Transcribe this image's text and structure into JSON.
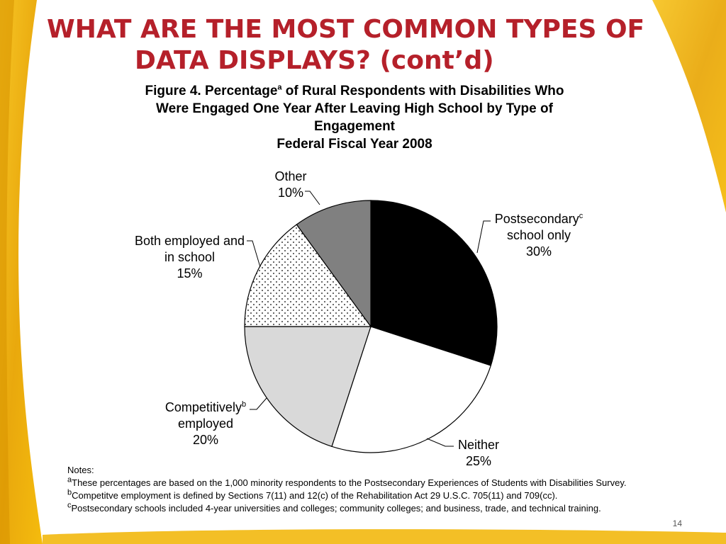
{
  "slide": {
    "title_line1": "WHAT ARE THE MOST COMMON TYPES OF",
    "title_line2": "DATA DISPLAYS? (cont’d)",
    "page_number": "14",
    "accent_color": "#b5202a",
    "frame_color": "#f0b400"
  },
  "figure": {
    "title_part1": "Figure 4. Percentage",
    "title_sup": "a",
    "title_part2": " of Rural Respondents with Disabilities Who",
    "title_line2": "Were Engaged One Year After Leaving High School by Type of",
    "title_line3": "Engagement",
    "title_line4": "Federal Fiscal Year 2008"
  },
  "chart_data": {
    "type": "pie",
    "start_angle_deg": 0,
    "direction": "clockwise",
    "slices": [
      {
        "label_line1": "Postsecondary",
        "label_sup": "c",
        "label_line2": "school only",
        "value": 30,
        "value_label": "30%",
        "fill": "#000000",
        "pattern": "solid"
      },
      {
        "label_line1": "Neither",
        "label_sup": "",
        "label_line2": "",
        "value": 25,
        "value_label": "25%",
        "fill": "#ffffff",
        "pattern": "solid"
      },
      {
        "label_line1": "Competitively",
        "label_sup": "b",
        "label_line2": "employed",
        "value": 20,
        "value_label": "20%",
        "fill": "#d9d9d9",
        "pattern": "solid"
      },
      {
        "label_line1": "Both employed and",
        "label_sup": "",
        "label_line2": "in school",
        "value": 15,
        "value_label": "15%",
        "fill": "#ffffff",
        "pattern": "dots"
      },
      {
        "label_line1": "Other",
        "label_sup": "",
        "label_line2": "",
        "value": 10,
        "value_label": "10%",
        "fill": "#808080",
        "pattern": "solid"
      }
    ]
  },
  "notes": {
    "heading": "Notes:",
    "items": [
      {
        "sup": "a",
        "text": "These percentages are based on the 1,000 minority respondents to the Postsecondary Experiences of Students with Disabilities Survey."
      },
      {
        "sup": "b",
        "text": "Competitve employment is defined by Sections 7(11) and 12(c) of the Rehabilitation Act 29 U.S.C. 705(11) and 709(cc)."
      },
      {
        "sup": "c",
        "text": "Postsecondary schools included 4-year universities and colleges; community colleges; and business, trade, and technical training."
      }
    ]
  }
}
